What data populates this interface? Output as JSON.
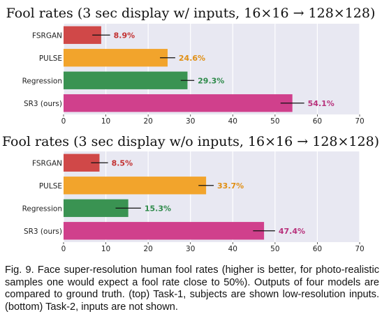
{
  "chart_data": [
    {
      "type": "bar",
      "orientation": "horizontal",
      "title": "Fool rates (3 sec display w/ inputs, 16×16 → 128×128)",
      "categories": [
        "FSRGAN",
        "PULSE",
        "Regression",
        "SR3 (ours)"
      ],
      "values": [
        8.9,
        24.6,
        29.3,
        54.1
      ],
      "value_labels": [
        "8.9%",
        "24.6%",
        "29.3%",
        "54.1%"
      ],
      "errors": [
        2.1,
        1.8,
        1.6,
        2.8
      ],
      "colors": [
        "#d04848",
        "#f2a42c",
        "#3a9352",
        "#d0408c"
      ],
      "label_colors": [
        "#c23030",
        "#e08f14",
        "#2e8a4a",
        "#b8327c"
      ],
      "xlim": [
        0,
        70
      ],
      "xticks": [
        0,
        10,
        20,
        30,
        40,
        50,
        60,
        70
      ],
      "grid": true,
      "xlabel": "",
      "ylabel": ""
    },
    {
      "type": "bar",
      "orientation": "horizontal",
      "title": "Fool rates (3 sec display w/o inputs, 16×16 → 128×128)",
      "categories": [
        "FSRGAN",
        "PULSE",
        "Regression",
        "SR3 (ours)"
      ],
      "values": [
        8.5,
        33.7,
        15.3,
        47.4
      ],
      "value_labels": [
        "8.5%",
        "33.7%",
        "15.3%",
        "47.4%"
      ],
      "errors": [
        2.0,
        1.8,
        3.0,
        2.6
      ],
      "colors": [
        "#d04848",
        "#f2a42c",
        "#3a9352",
        "#d0408c"
      ],
      "label_colors": [
        "#c23030",
        "#e08f14",
        "#2e8a4a",
        "#b8327c"
      ],
      "xlim": [
        0,
        70
      ],
      "xticks": [
        0,
        10,
        20,
        30,
        40,
        50,
        60,
        70
      ],
      "grid": true,
      "xlabel": "",
      "ylabel": ""
    }
  ],
  "caption": "Fig. 9. Face super-resolution human fool rates (higher is better, for photo-realistic samples one would expect a fool rate close to 50%). Outputs of four models are compared to ground truth. (top) Task-1, subjects are shown low-resolution inputs. (bottom) Task-2, inputs are not shown."
}
